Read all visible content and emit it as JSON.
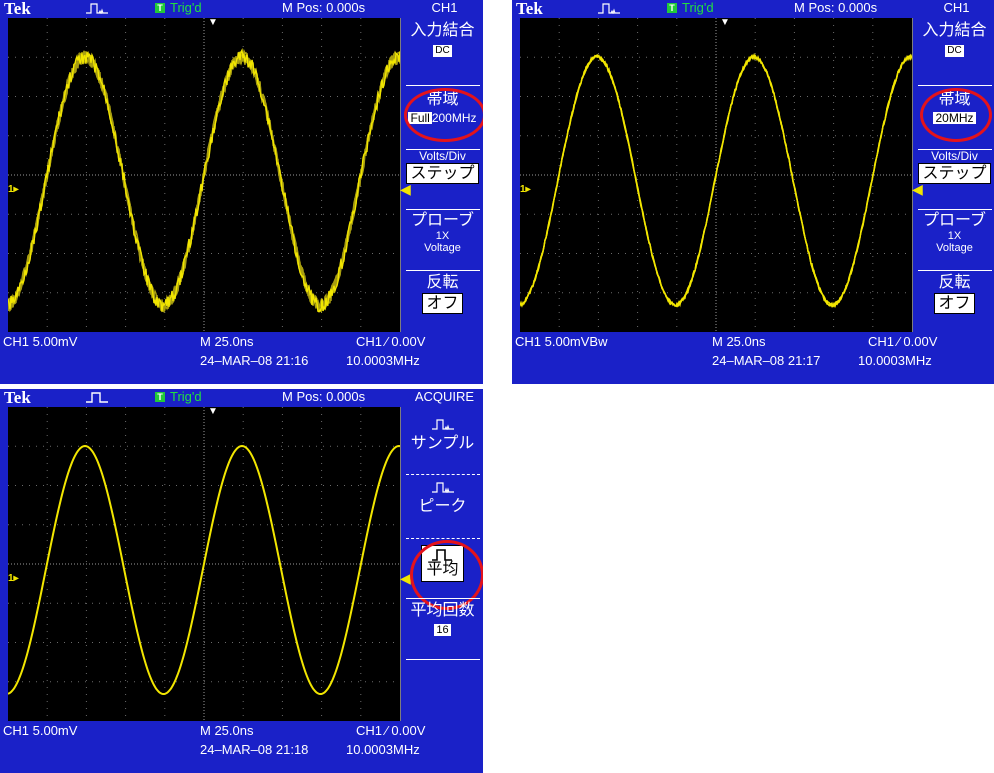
{
  "colors": {
    "background": "#1a21c8",
    "trace": "#f2e600",
    "highlight": "#e4131b",
    "trig": "#22c83a"
  },
  "scopes": [
    {
      "brand": "Tek",
      "trig_icon": "T",
      "trig_status": "Trig'd",
      "mpos": "M Pos: 0.000s",
      "menu_title": "CH1",
      "menu": {
        "coupling_label": "入力結合",
        "coupling_value": "DC",
        "bandwidth_label": "帯域",
        "bandwidth_value_a": "Full",
        "bandwidth_value_b": "200MHz",
        "voltsdiv_label": "Volts/Div",
        "voltsdiv_value": "ステップ",
        "probe_label": "プローブ",
        "probe_value_a": "1X",
        "probe_value_b": "Voltage",
        "invert_label": "反転",
        "invert_value": "オフ"
      },
      "ch_scale": "CH1  5.00mV",
      "timebase": "M 25.0ns",
      "trigger": "CH1 ⁄ 0.00V",
      "datetime": "24–MAR–08 21:16",
      "frequency": "10.0003MHz",
      "noise": "heavy"
    },
    {
      "brand": "Tek",
      "trig_icon": "T",
      "trig_status": "Trig'd",
      "mpos": "M Pos: 0.000s",
      "menu_title": "CH1",
      "menu": {
        "coupling_label": "入力結合",
        "coupling_value": "DC",
        "bandwidth_label": "帯域",
        "bandwidth_value": "20MHz",
        "voltsdiv_label": "Volts/Div",
        "voltsdiv_value": "ステップ",
        "probe_label": "プローブ",
        "probe_value_a": "1X",
        "probe_value_b": "Voltage",
        "invert_label": "反転",
        "invert_value": "オフ"
      },
      "ch_scale": "CH1  5.00mVBᵥ⽿",
      "ch_scale_text": "CH1  5.00mVBw",
      "timebase": "M 25.0ns",
      "trigger": "CH1 ⁄ 0.00V",
      "datetime": "24–MAR–08 21:17",
      "frequency": "10.0003MHz",
      "noise": "light"
    },
    {
      "brand": "Tek",
      "trig_icon": "T",
      "trig_status": "Trig'd",
      "mpos": "M Pos: 0.000s",
      "menu_title": "ACQUIRE",
      "menu": {
        "sample_label": "サンプル",
        "peak_label": "ピーク",
        "average_label": "平均",
        "avg_count_label": "平均回数",
        "avg_count_value": "16"
      },
      "ch_scale": "CH1  5.00mV",
      "timebase": "M 25.0ns",
      "trigger": "CH1 ⁄ 0.00V",
      "datetime": "24–MAR–08 21:18",
      "frequency": "10.0003MHz",
      "noise": "none"
    }
  ]
}
